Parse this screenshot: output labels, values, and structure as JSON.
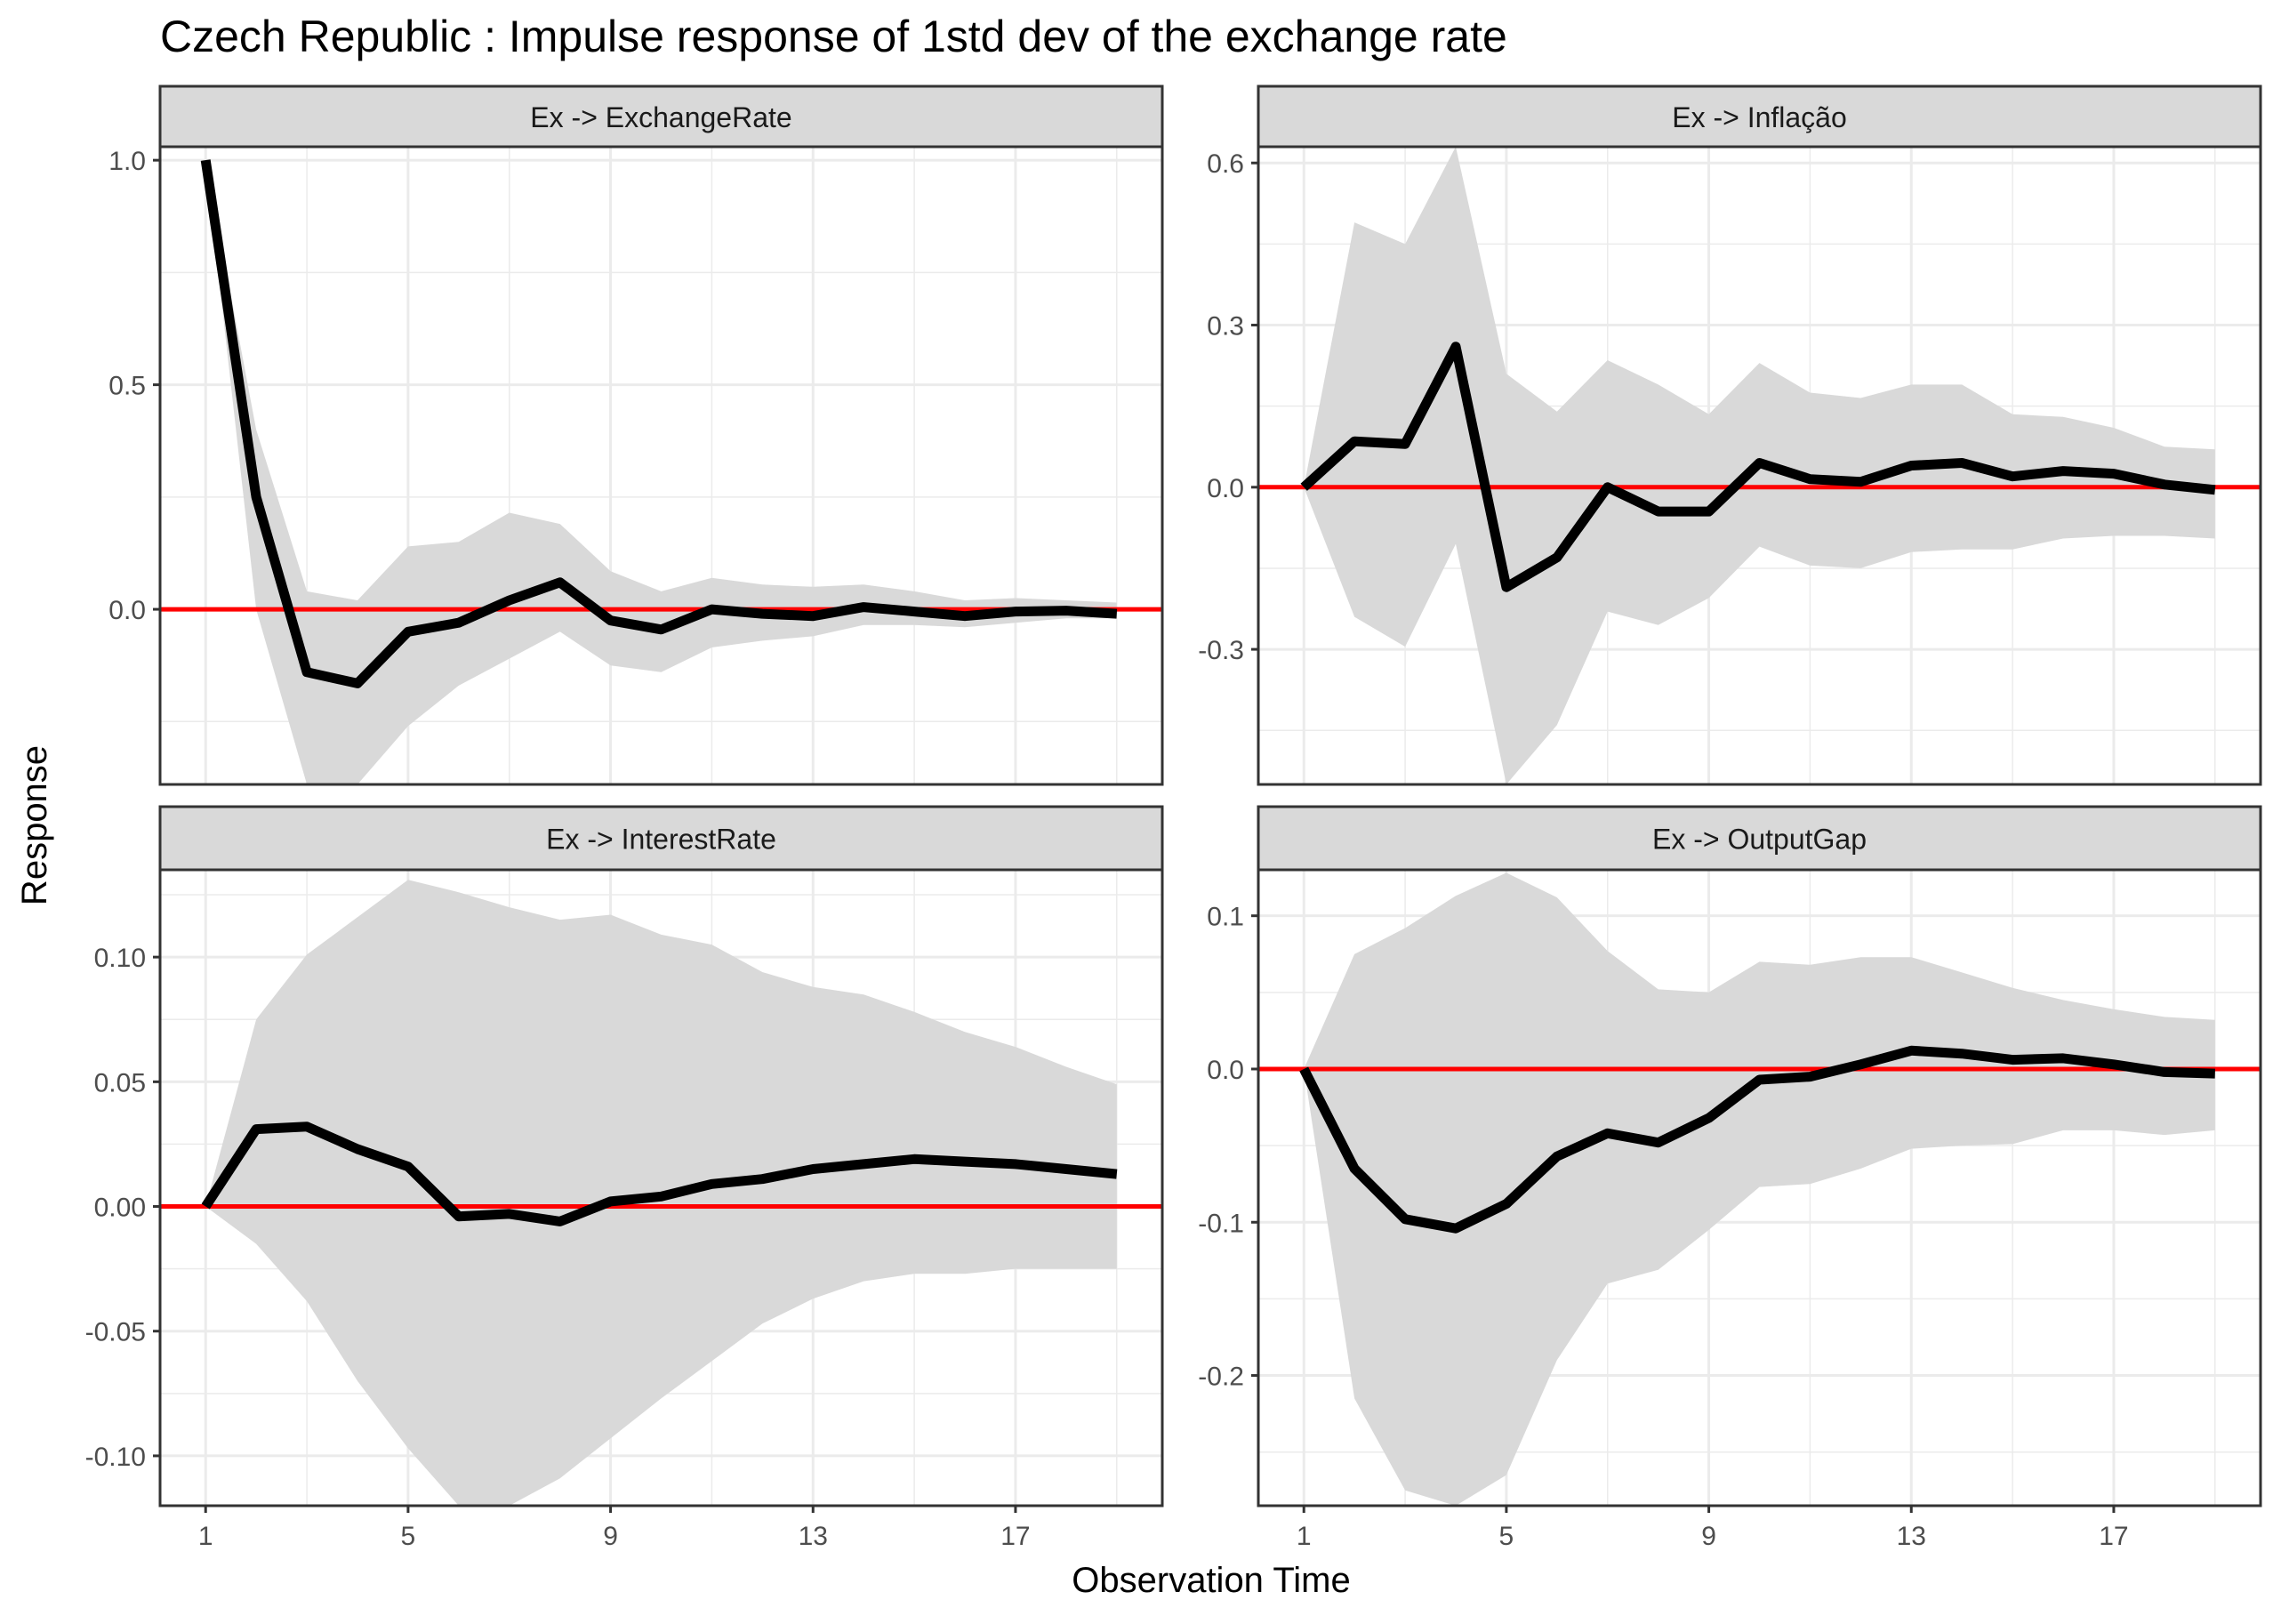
{
  "chart_data": {
    "type": "line",
    "title": "Czech Republic : Impulse response of 1std dev of the exchange rate",
    "xlabel": "Observation Time",
    "ylabel": "Response",
    "x": [
      1,
      2,
      3,
      4,
      5,
      6,
      7,
      8,
      9,
      10,
      11,
      12,
      13,
      14,
      15,
      16,
      17,
      18,
      19
    ],
    "x_ticks": [
      1,
      5,
      9,
      13,
      17
    ],
    "grid": true,
    "colors": {
      "line": "#000000",
      "zero_line": "#ff0000",
      "band": "#d9d9d9",
      "strip": "#d9d9d9",
      "grid": "#ebebeb",
      "tick_text": "#4d4d4d"
    },
    "panels": [
      {
        "strip": "Ex -> ExchangeRate",
        "ylim": [
          -0.39,
          1.03
        ],
        "y_ticks": [
          0.0,
          0.5,
          1.0
        ],
        "y_tick_labels": [
          "0.0",
          "0.5",
          "1.0"
        ],
        "series": [
          {
            "values": [
              1.0,
              0.25,
              -0.14,
              -0.165,
              -0.05,
              -0.03,
              0.02,
              0.06,
              -0.025,
              -0.045,
              0.0,
              -0.01,
              -0.015,
              0.005,
              -0.005,
              -0.015,
              -0.005,
              -0.003,
              -0.01
            ]
          }
        ],
        "lower": [
          1.0,
          0.0,
          -0.39,
          -0.39,
          -0.26,
          -0.17,
          -0.11,
          -0.05,
          -0.125,
          -0.14,
          -0.085,
          -0.07,
          -0.06,
          -0.035,
          -0.035,
          -0.04,
          -0.03,
          -0.02,
          -0.02
        ],
        "upper": [
          1.0,
          0.4,
          0.04,
          0.02,
          0.14,
          0.15,
          0.215,
          0.19,
          0.085,
          0.04,
          0.07,
          0.055,
          0.05,
          0.055,
          0.04,
          0.02,
          0.025,
          0.02,
          0.015
        ]
      },
      {
        "strip": "Ex -> Inflação",
        "ylim": [
          -0.55,
          0.63
        ],
        "y_ticks": [
          -0.3,
          0.0,
          0.3,
          0.6
        ],
        "y_tick_labels": [
          "-0.3",
          "0.0",
          "0.3",
          "0.6"
        ],
        "series": [
          {
            "values": [
              0.0,
              0.085,
              0.08,
              0.26,
              -0.185,
              -0.13,
              0.0,
              -0.045,
              -0.045,
              0.045,
              0.015,
              0.01,
              0.04,
              0.045,
              0.02,
              0.03,
              0.025,
              0.005,
              -0.005
            ]
          }
        ],
        "lower": [
          0.0,
          -0.24,
          -0.295,
          -0.105,
          -0.55,
          -0.44,
          -0.23,
          -0.255,
          -0.205,
          -0.11,
          -0.145,
          -0.15,
          -0.12,
          -0.115,
          -0.115,
          -0.095,
          -0.09,
          -0.09,
          -0.095
        ],
        "upper": [
          0.0,
          0.49,
          0.45,
          0.63,
          0.21,
          0.14,
          0.235,
          0.19,
          0.135,
          0.23,
          0.175,
          0.165,
          0.19,
          0.19,
          0.135,
          0.13,
          0.11,
          0.075,
          0.07
        ]
      },
      {
        "strip": "Ex -> InterestRate",
        "ylim": [
          -0.12,
          0.135
        ],
        "y_ticks": [
          -0.1,
          -0.05,
          0.0,
          0.05,
          0.1
        ],
        "y_tick_labels": [
          "-0.10",
          "-0.05",
          "0.00",
          "0.05",
          "0.10"
        ],
        "series": [
          {
            "values": [
              0.0,
              0.031,
              0.032,
              0.023,
              0.016,
              -0.004,
              -0.003,
              -0.006,
              0.002,
              0.004,
              0.009,
              0.011,
              0.015,
              0.017,
              0.019,
              0.018,
              0.017,
              0.015,
              0.013
            ]
          }
        ],
        "lower": [
          0.0,
          -0.015,
          -0.038,
          -0.07,
          -0.097,
          -0.12,
          -0.12,
          -0.109,
          -0.093,
          -0.077,
          -0.062,
          -0.047,
          -0.037,
          -0.03,
          -0.027,
          -0.027,
          -0.025,
          -0.025,
          -0.025
        ],
        "upper": [
          0.0,
          0.075,
          0.101,
          0.116,
          0.131,
          0.126,
          0.12,
          0.115,
          0.117,
          0.109,
          0.105,
          0.094,
          0.088,
          0.085,
          0.078,
          0.07,
          0.064,
          0.056,
          0.049
        ]
      },
      {
        "strip": "Ex -> OutputGap",
        "ylim": [
          -0.285,
          0.13
        ],
        "y_ticks": [
          -0.2,
          -0.1,
          0.0,
          0.1
        ],
        "y_tick_labels": [
          "-0.2",
          "-0.1",
          "0.0",
          "0.1"
        ],
        "series": [
          {
            "values": [
              0.0,
              -0.065,
              -0.098,
              -0.104,
              -0.088,
              -0.057,
              -0.042,
              -0.048,
              -0.032,
              -0.007,
              -0.005,
              0.003,
              0.012,
              0.01,
              0.006,
              0.007,
              0.003,
              -0.002,
              -0.003
            ]
          }
        ],
        "lower": [
          0.0,
          -0.215,
          -0.275,
          -0.285,
          -0.265,
          -0.19,
          -0.14,
          -0.131,
          -0.105,
          -0.077,
          -0.075,
          -0.065,
          -0.052,
          -0.05,
          -0.049,
          -0.04,
          -0.04,
          -0.043,
          -0.04
        ],
        "upper": [
          0.0,
          0.075,
          0.092,
          0.113,
          0.128,
          0.112,
          0.077,
          0.052,
          0.05,
          0.07,
          0.068,
          0.073,
          0.073,
          0.063,
          0.053,
          0.045,
          0.039,
          0.034,
          0.032
        ]
      }
    ]
  }
}
